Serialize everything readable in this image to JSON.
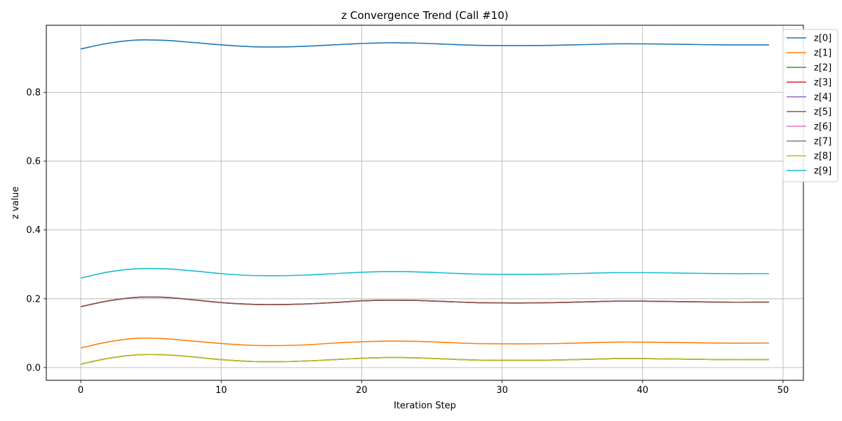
{
  "chart_data": {
    "type": "line",
    "title": "z Convergence Trend (Call #10)",
    "xlabel": "Iteration Step",
    "ylabel": "z value",
    "xlim": [
      -2.45,
      51.45
    ],
    "ylim": [
      -0.037,
      0.995
    ],
    "xticks": [
      0,
      10,
      20,
      30,
      40,
      50
    ],
    "yticks": [
      0.0,
      0.2,
      0.4,
      0.6,
      0.8
    ],
    "xtick_labels": [
      "0",
      "10",
      "20",
      "30",
      "40",
      "50"
    ],
    "ytick_labels": [
      "0.0",
      "0.2",
      "0.4",
      "0.6",
      "0.8"
    ],
    "grid": true,
    "legend_position": "top-right, outside",
    "x": [
      0,
      2,
      4,
      6,
      8,
      10,
      12,
      14,
      16,
      18,
      20,
      22,
      24,
      26,
      28,
      30,
      32,
      34,
      36,
      38,
      40,
      42,
      44,
      46,
      48,
      49
    ],
    "series": [
      {
        "name": "z[0]",
        "color": "#1f77b4",
        "values": [
          0.926,
          0.943,
          0.952,
          0.951,
          0.945,
          0.938,
          0.933,
          0.932,
          0.934,
          0.938,
          0.942,
          0.944,
          0.943,
          0.94,
          0.937,
          0.936,
          0.936,
          0.937,
          0.939,
          0.941,
          0.941,
          0.94,
          0.939,
          0.938,
          0.938,
          0.938
        ]
      },
      {
        "name": "z[1]",
        "color": "#ff7f0e",
        "values": [
          0.057,
          0.075,
          0.085,
          0.084,
          0.077,
          0.07,
          0.065,
          0.064,
          0.066,
          0.071,
          0.075,
          0.077,
          0.076,
          0.073,
          0.07,
          0.069,
          0.069,
          0.07,
          0.072,
          0.074,
          0.074,
          0.073,
          0.072,
          0.071,
          0.071,
          0.071
        ]
      },
      {
        "name": "z[2]",
        "color": "#2ca02c",
        "values": [
          0.01,
          0.027,
          0.037,
          0.037,
          0.031,
          0.023,
          0.018,
          0.017,
          0.019,
          0.023,
          0.027,
          0.029,
          0.028,
          0.025,
          0.022,
          0.021,
          0.021,
          0.022,
          0.024,
          0.026,
          0.026,
          0.025,
          0.024,
          0.023,
          0.023,
          0.023
        ]
      },
      {
        "name": "z[3]",
        "color": "#d62728",
        "values": [
          0.177,
          0.194,
          0.204,
          0.204,
          0.197,
          0.189,
          0.184,
          0.183,
          0.185,
          0.189,
          0.194,
          0.196,
          0.195,
          0.192,
          0.189,
          0.188,
          0.188,
          0.189,
          0.191,
          0.193,
          0.193,
          0.192,
          0.191,
          0.19,
          0.19,
          0.19
        ]
      },
      {
        "name": "z[4]",
        "color": "#9467bd",
        "values": [
          0.177,
          0.194,
          0.204,
          0.204,
          0.197,
          0.189,
          0.184,
          0.183,
          0.185,
          0.189,
          0.194,
          0.196,
          0.195,
          0.192,
          0.189,
          0.188,
          0.188,
          0.189,
          0.191,
          0.193,
          0.193,
          0.192,
          0.191,
          0.19,
          0.19,
          0.19
        ]
      },
      {
        "name": "z[5]",
        "color": "#8c564b",
        "values": [
          0.177,
          0.194,
          0.204,
          0.204,
          0.197,
          0.189,
          0.184,
          0.183,
          0.185,
          0.189,
          0.194,
          0.196,
          0.195,
          0.192,
          0.189,
          0.188,
          0.188,
          0.189,
          0.191,
          0.193,
          0.193,
          0.192,
          0.191,
          0.19,
          0.19,
          0.19
        ]
      },
      {
        "name": "z[6]",
        "color": "#e377c2",
        "values": [
          0.01,
          0.027,
          0.037,
          0.037,
          0.031,
          0.023,
          0.018,
          0.017,
          0.019,
          0.023,
          0.027,
          0.029,
          0.028,
          0.025,
          0.022,
          0.021,
          0.021,
          0.022,
          0.024,
          0.026,
          0.026,
          0.025,
          0.024,
          0.023,
          0.023,
          0.023
        ]
      },
      {
        "name": "z[7]",
        "color": "#7f7f7f",
        "values": [
          0.01,
          0.027,
          0.037,
          0.037,
          0.031,
          0.023,
          0.018,
          0.017,
          0.019,
          0.023,
          0.027,
          0.029,
          0.028,
          0.025,
          0.022,
          0.021,
          0.021,
          0.022,
          0.024,
          0.026,
          0.026,
          0.025,
          0.024,
          0.023,
          0.023,
          0.023
        ]
      },
      {
        "name": "z[8]",
        "color": "#bcbd22",
        "values": [
          0.01,
          0.027,
          0.037,
          0.037,
          0.031,
          0.023,
          0.018,
          0.017,
          0.019,
          0.023,
          0.027,
          0.029,
          0.028,
          0.025,
          0.022,
          0.021,
          0.021,
          0.022,
          0.024,
          0.026,
          0.026,
          0.025,
          0.024,
          0.023,
          0.023,
          0.023
        ]
      },
      {
        "name": "z[9]",
        "color": "#17becf",
        "values": [
          0.26,
          0.278,
          0.287,
          0.287,
          0.281,
          0.273,
          0.268,
          0.267,
          0.269,
          0.273,
          0.277,
          0.279,
          0.278,
          0.275,
          0.272,
          0.271,
          0.271,
          0.272,
          0.274,
          0.276,
          0.276,
          0.275,
          0.274,
          0.273,
          0.273,
          0.273
        ]
      }
    ]
  }
}
